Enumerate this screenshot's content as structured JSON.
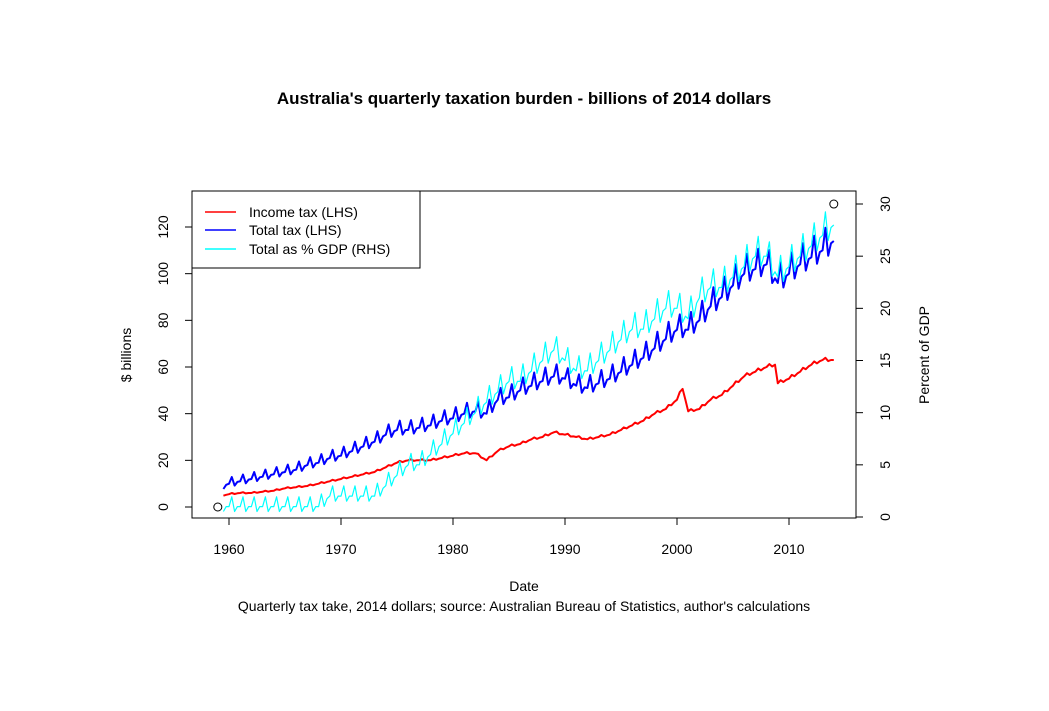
{
  "chart_data": {
    "type": "line",
    "title": "Australia's quarterly taxation burden - billions of 2014 dollars",
    "xlabel": "Date",
    "caption": "Quarterly tax take, 2014 dollars; source: Australian Bureau of Statistics, author's calculations",
    "ylabel": "$ billions",
    "ylabel_right": "Percent of GDP",
    "xlim": [
      1959,
      2014.5
    ],
    "ylim": [
      0,
      130
    ],
    "ylim_right": [
      0,
      30
    ],
    "x_ticks": [
      1960,
      1970,
      1980,
      1990,
      2000,
      2010
    ],
    "y_ticks": [
      0,
      20,
      40,
      60,
      80,
      100,
      120
    ],
    "y_ticks_right": [
      0,
      5,
      10,
      15,
      20,
      25,
      30
    ],
    "grid": false,
    "legend": {
      "position": "top-left",
      "entries": [
        {
          "label": "Income tax (LHS)",
          "color": "#ff0000"
        },
        {
          "label": "Total tax (LHS)",
          "color": "#0000ff"
        },
        {
          "label": "Total as % GDP (RHS)",
          "color": "#00ffff"
        }
      ]
    },
    "markers": [
      {
        "x": 1959,
        "y": 0,
        "axis": "left",
        "shape": "open-circle"
      },
      {
        "x": 2014,
        "y": 30,
        "axis": "right",
        "shape": "open-circle"
      }
    ],
    "frequency": "quarterly",
    "series": [
      {
        "name": "Income tax (LHS)",
        "color": "#ff0000",
        "axis": "left",
        "x": [
          1959.5,
          1960,
          1961,
          1962,
          1963,
          1964,
          1965,
          1966,
          1967,
          1968,
          1969,
          1970,
          1971,
          1972,
          1973,
          1974,
          1975,
          1976,
          1977,
          1978,
          1979,
          1980,
          1981,
          1982,
          1983,
          1984,
          1985,
          1986,
          1987,
          1988,
          1989,
          1990,
          1991,
          1992,
          1993,
          1994,
          1995,
          1996,
          1997,
          1998,
          1999,
          2000,
          2000.5,
          2001,
          2002,
          2003,
          2004,
          2005,
          2006,
          2007,
          2008,
          2008.75,
          2009,
          2010,
          2011,
          2012,
          2013,
          2014
        ],
        "values": [
          5,
          5.5,
          6,
          6,
          6.5,
          7,
          8,
          8.5,
          9,
          10,
          11,
          12,
          13,
          14,
          15,
          17,
          19,
          20,
          20,
          20,
          21,
          22,
          23,
          23,
          20,
          24,
          26,
          27,
          29,
          30,
          32,
          31,
          30,
          29,
          30,
          31,
          33,
          35,
          37,
          40,
          42,
          46,
          51,
          41,
          42,
          46,
          48,
          52,
          56,
          58,
          60,
          61,
          53,
          55,
          58,
          61,
          63,
          63
        ]
      },
      {
        "name": "Total tax (LHS)",
        "color": "#0000ff",
        "axis": "left",
        "x": [
          1959.5,
          1960,
          1961,
          1962,
          1963,
          1964,
          1965,
          1966,
          1967,
          1968,
          1969,
          1970,
          1971,
          1972,
          1973,
          1974,
          1975,
          1976,
          1977,
          1978,
          1979,
          1980,
          1981,
          1982,
          1983,
          1984,
          1985,
          1986,
          1987,
          1988,
          1989,
          1990,
          1991,
          1992,
          1993,
          1994,
          1995,
          1996,
          1997,
          1998,
          1999,
          2000,
          2001,
          2002,
          2003,
          2004,
          2005,
          2006,
          2007,
          2008,
          2009,
          2010,
          2011,
          2012,
          2013,
          2014
        ],
        "values": [
          9,
          10,
          11,
          12,
          13,
          14,
          15,
          16,
          18,
          19,
          21,
          22,
          24,
          26,
          28,
          31,
          33,
          33,
          34,
          35,
          37,
          38,
          40,
          41,
          40,
          46,
          47,
          50,
          52,
          54,
          56,
          55,
          52,
          51,
          53,
          55,
          58,
          61,
          64,
          68,
          72,
          76,
          76,
          80,
          86,
          90,
          95,
          100,
          102,
          104,
          96,
          100,
          104,
          107,
          110,
          114
        ]
      },
      {
        "name": "Total as % GDP (RHS)",
        "color": "#00ffff",
        "axis": "right",
        "x": [
          1959.5,
          1960,
          1961,
          1962,
          1963,
          1964,
          1965,
          1966,
          1967,
          1968,
          1969,
          1970,
          1971,
          1972,
          1973,
          1974,
          1975,
          1976,
          1977,
          1978,
          1979,
          1980,
          1981,
          1982,
          1983,
          1984,
          1985,
          1986,
          1987,
          1988,
          1989,
          1990,
          1991,
          1992,
          1993,
          1994,
          1995,
          1996,
          1997,
          1998,
          1999,
          2000,
          2001,
          2002,
          2003,
          2004,
          2005,
          2006,
          2007,
          2008,
          2009,
          2010,
          2011,
          2012,
          2013,
          2014
        ],
        "values": [
          1,
          1,
          1,
          1,
          1,
          1,
          1,
          1,
          1,
          1,
          2,
          2,
          2,
          2,
          2,
          3,
          4,
          5,
          5,
          6,
          7,
          8,
          9,
          10,
          11,
          12,
          13,
          13,
          14,
          15,
          16,
          15,
          14,
          14,
          15,
          16,
          17,
          18,
          18,
          19,
          20,
          20,
          19,
          21,
          22,
          22,
          23,
          24,
          25,
          25,
          23,
          24,
          25,
          26,
          27,
          28
        ]
      }
    ]
  }
}
